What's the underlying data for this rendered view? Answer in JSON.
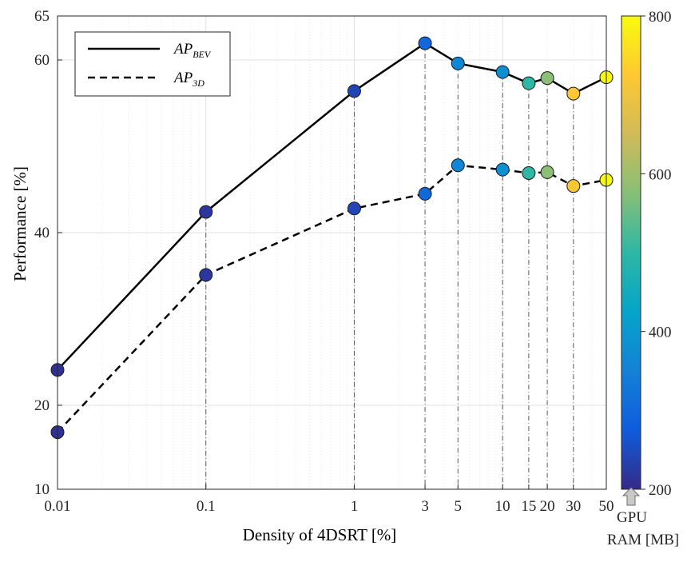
{
  "chart_data": {
    "type": "line",
    "xlabel": "Density of 4DSRT [%]",
    "ylabel": "Performance [%]",
    "x_scale": "log",
    "x_ticks": [
      "0.01",
      "0.1",
      "1",
      "3",
      "5",
      "10",
      "15",
      "20",
      "30",
      "50"
    ],
    "y_ticks": [
      "10",
      "20",
      "40",
      "60",
      "65"
    ],
    "ylim": [
      10,
      65
    ],
    "xlim": [
      0.01,
      50
    ],
    "grid": true,
    "legend_position": "top-left",
    "x": [
      0.01,
      0.1,
      1,
      3,
      5,
      10,
      15,
      20,
      30,
      50
    ],
    "series": [
      {
        "name": "AP_BEV",
        "legend_main": "AP",
        "legend_sub": "BEV",
        "line_style": "solid",
        "values": [
          24.1,
          42.4,
          56.4,
          61.9,
          59.6,
          58.6,
          57.3,
          57.9,
          56.1,
          58.0
        ]
      },
      {
        "name": "AP_3D",
        "legend_main": "AP",
        "legend_sub": "3D",
        "line_style": "dashed",
        "values": [
          16.8,
          35.1,
          42.8,
          44.5,
          47.8,
          47.3,
          46.9,
          47.0,
          45.4,
          46.1
        ]
      }
    ],
    "gpu_ram_mb": [
      210,
      220,
      240,
      300,
      360,
      380,
      500,
      580,
      720,
      800
    ],
    "colorbar": {
      "label_line1": "GPU",
      "label_line2": "RAM [MB]",
      "range": [
        200,
        800
      ],
      "ticks": [
        "200",
        "400",
        "600",
        "800"
      ],
      "colors": [
        "#352a87",
        "#0f5cdd",
        "#1481d6",
        "#06a4ca",
        "#2eb7a4",
        "#87bf77",
        "#d1bb59",
        "#fec832",
        "#f9fb0e"
      ]
    }
  }
}
